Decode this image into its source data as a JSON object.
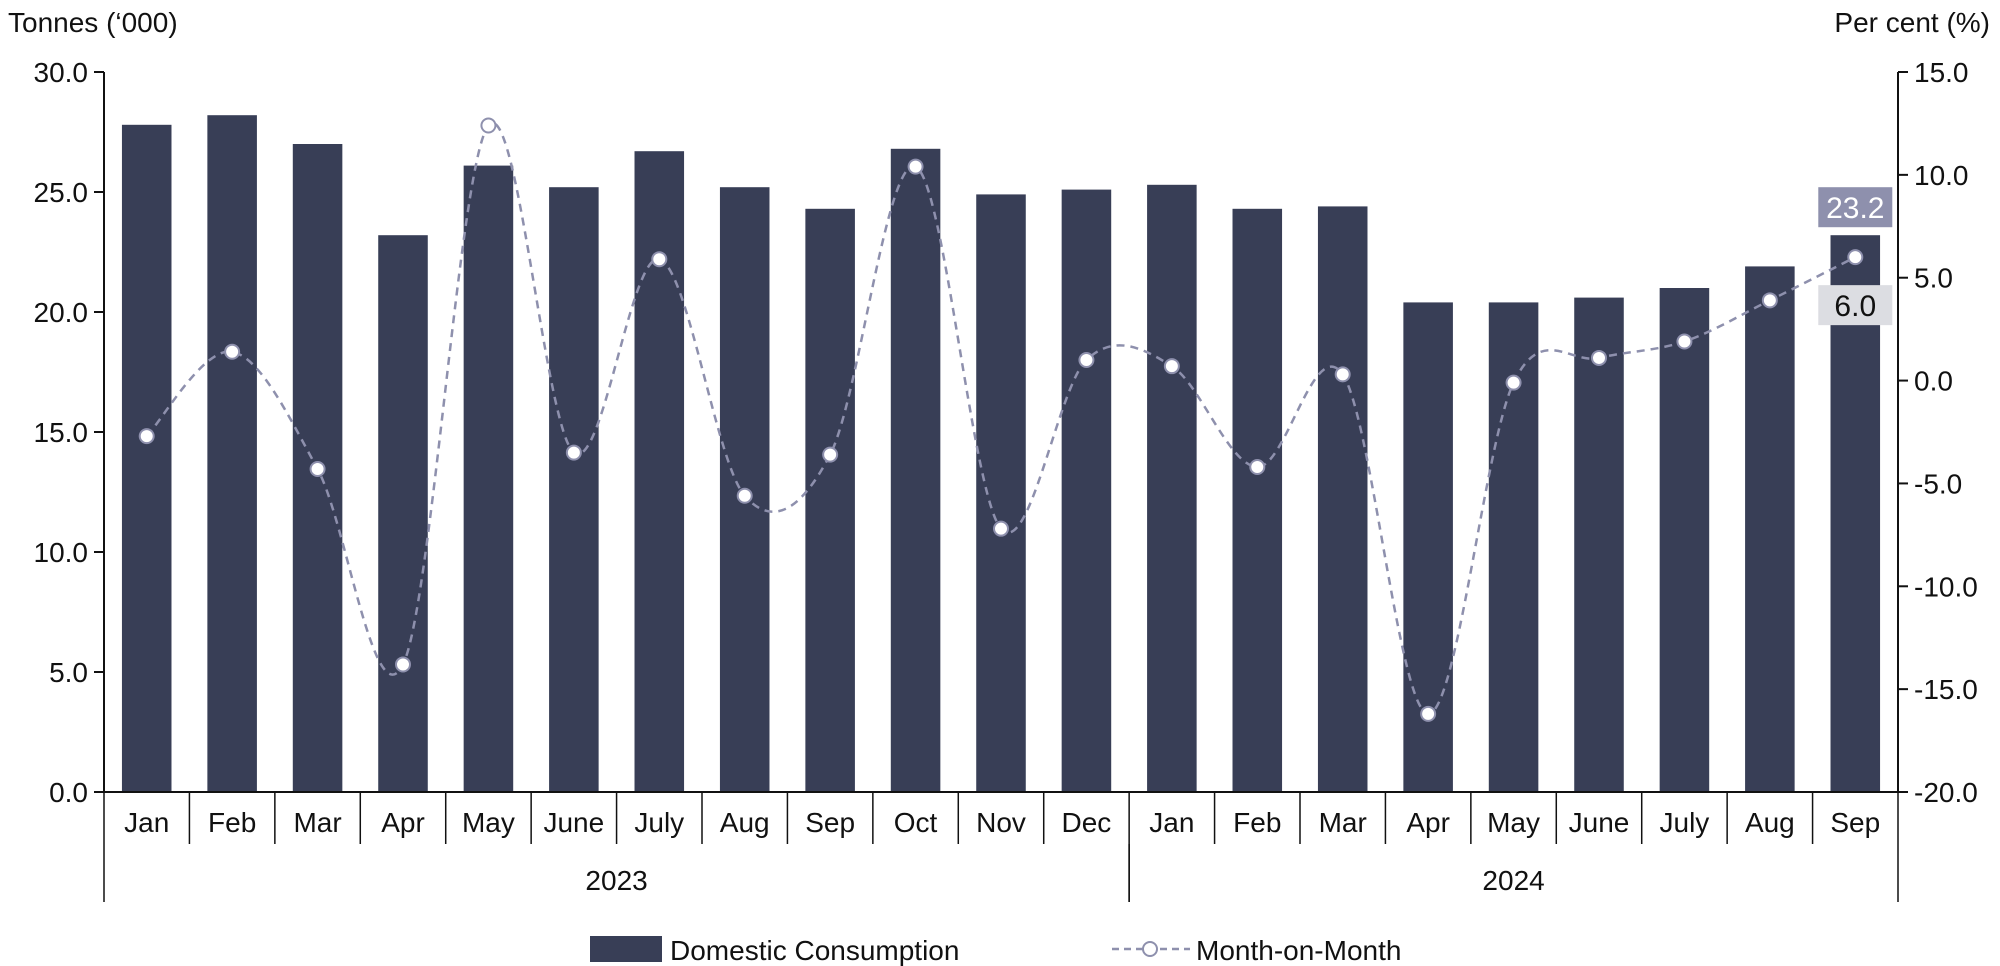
{
  "chart_data": {
    "type": "bar",
    "left_axis_label": "Tonnes (‘000)",
    "right_axis_label": "Per cent (%)",
    "categories": [
      "Jan",
      "Feb",
      "Mar",
      "Apr",
      "May",
      "June",
      "July",
      "Aug",
      "Sep",
      "Oct",
      "Nov",
      "Dec",
      "Jan",
      "Feb",
      "Mar",
      "Apr",
      "May",
      "June",
      "July",
      "Aug",
      "Sep"
    ],
    "groups": [
      {
        "label": "2023",
        "start": 0,
        "end": 11
      },
      {
        "label": "2024",
        "start": 12,
        "end": 20
      }
    ],
    "y_left": {
      "min": 0,
      "max": 30,
      "ticks": [
        "0.0",
        "5.0",
        "10.0",
        "15.0",
        "20.0",
        "25.0",
        "30.0"
      ]
    },
    "y_right": {
      "min": -20,
      "max": 15,
      "ticks": [
        "-20.0",
        "-15.0",
        "-10.0",
        "-5.0",
        "0.0",
        "5.0",
        "10.0",
        "15.0"
      ]
    },
    "grid": false,
    "legend_position": "bottom",
    "series": [
      {
        "name": "Domestic Consumption",
        "kind": "bar",
        "axis": "left",
        "color": "#383e56",
        "values": [
          27.8,
          28.2,
          27.0,
          23.2,
          26.1,
          25.2,
          26.7,
          25.2,
          24.3,
          26.8,
          24.9,
          25.1,
          25.3,
          24.3,
          24.4,
          20.4,
          20.4,
          20.6,
          21.0,
          21.9,
          23.2
        ]
      },
      {
        "name": "Month-on-Month",
        "kind": "line",
        "axis": "right",
        "color": "#8e90ad",
        "style": "dashed-smooth-circle-markers",
        "values": [
          -2.7,
          1.4,
          -4.3,
          -13.8,
          12.4,
          -3.5,
          5.9,
          -5.6,
          -3.6,
          10.4,
          -7.2,
          1.0,
          0.7,
          -4.2,
          0.3,
          -16.2,
          -0.1,
          1.1,
          1.9,
          3.9,
          6.0
        ]
      }
    ],
    "annotations": [
      {
        "text": "23.2",
        "series": "Domestic Consumption",
        "index": 20,
        "background": "#8e90ad",
        "color": "#ffffff"
      },
      {
        "text": "6.0",
        "series": "Month-on-Month",
        "index": 20,
        "background": "#dcdde2",
        "color": "#111111"
      }
    ]
  }
}
